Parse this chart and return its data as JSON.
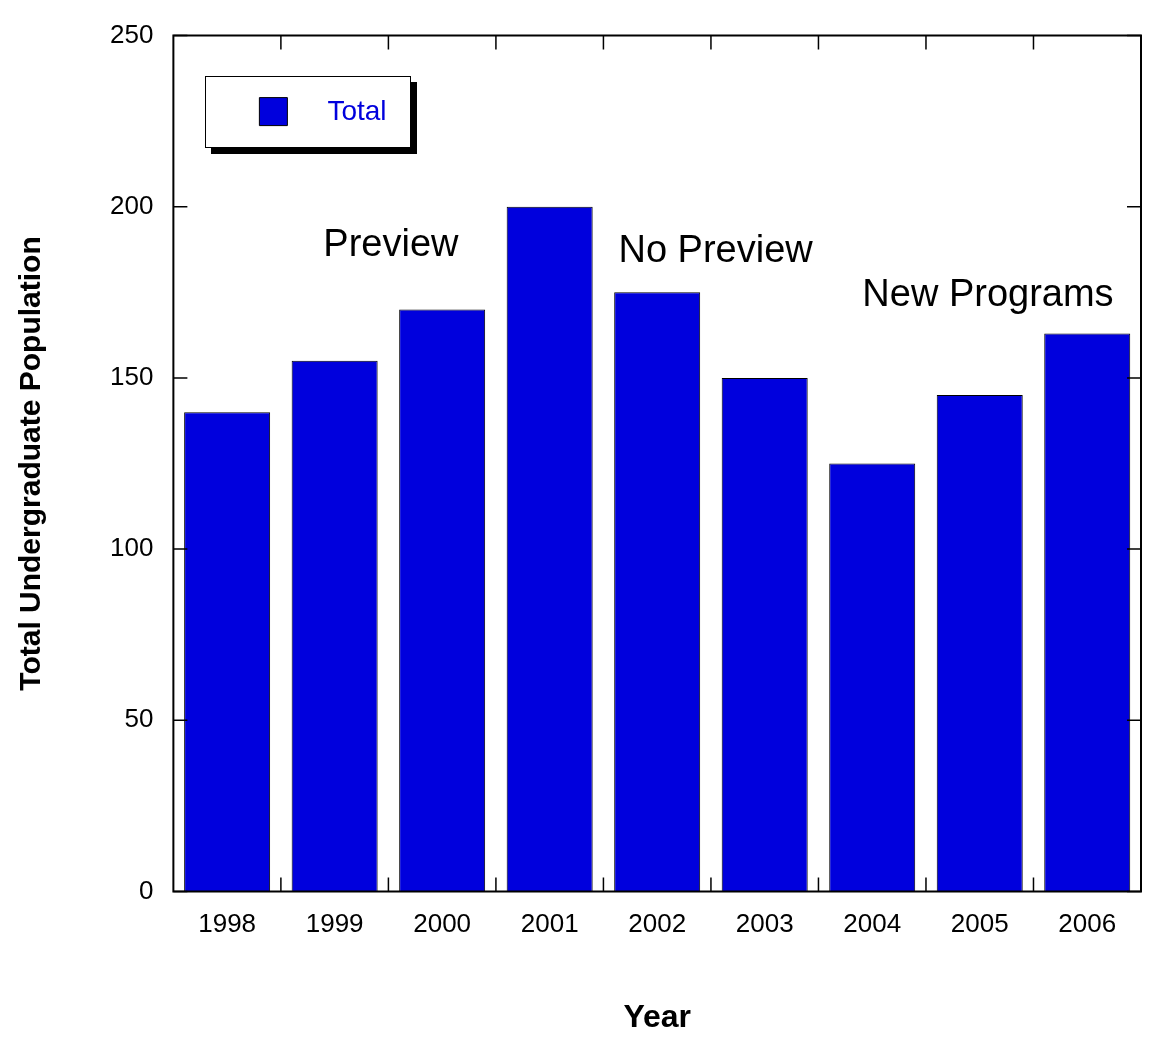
{
  "chart_data": {
    "type": "bar",
    "xlabel": "Year",
    "ylabel": "Total Undergraduate Population",
    "categories": [
      "1998",
      "1999",
      "2000",
      "2001",
      "2002",
      "2003",
      "2004",
      "2005",
      "2006"
    ],
    "series": [
      {
        "name": "Total",
        "color": "#0000dd",
        "values": [
          140,
          155,
          170,
          200,
          175,
          150,
          125,
          145,
          163
        ]
      }
    ],
    "ylim": [
      0,
      250
    ],
    "yticks": [
      0,
      50,
      100,
      150,
      200,
      250
    ],
    "grid": false,
    "legend": "top left",
    "annotations": [
      "Preview",
      "No Preview",
      "New Programs"
    ]
  }
}
